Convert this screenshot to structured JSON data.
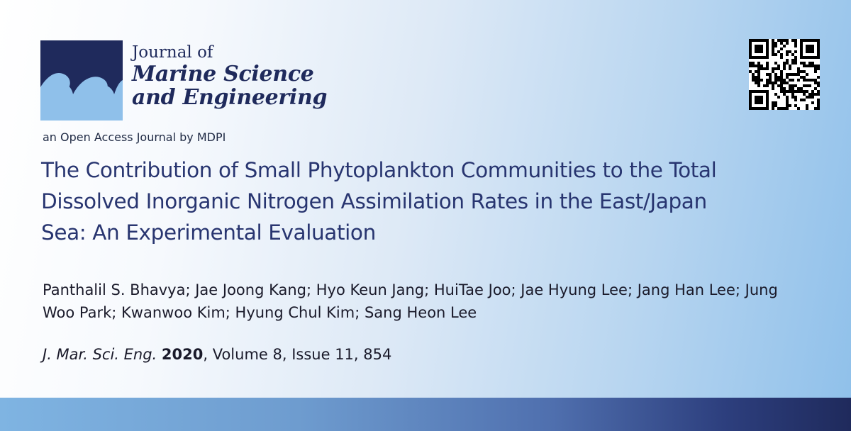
{
  "journal": {
    "name_line1": "Journal of",
    "name_line2": "Marine Science",
    "name_line3": "and Engineering",
    "publisher_line": "an Open Access Journal by MDPI",
    "brand_dark": "#1f2a5c",
    "brand_light": "#7fb4e2"
  },
  "article": {
    "title": "The Contribution of Small Phytoplankton Communities to the Total Dissolved Inorganic Nitrogen Assimilation Rates in the East/Japan Sea: An Experimental Evaluation",
    "authors": "Panthalil S. Bhavya; Jae Joong Kang; Hyo Keun Jang; HuiTae Joo; Jae Hyung Lee; Jang Han Lee; Jung Woo Park; Kwanwoo Kim; Hyung Chul Kim; Sang Heon Lee",
    "citation": {
      "journal_abbr": "J. Mar. Sci. Eng.",
      "year": "2020",
      "rest": ", Volume 8, Issue 11, 854"
    }
  },
  "icons": {
    "logo": "wave-logo-icon",
    "qr": "qr-code-icon"
  }
}
